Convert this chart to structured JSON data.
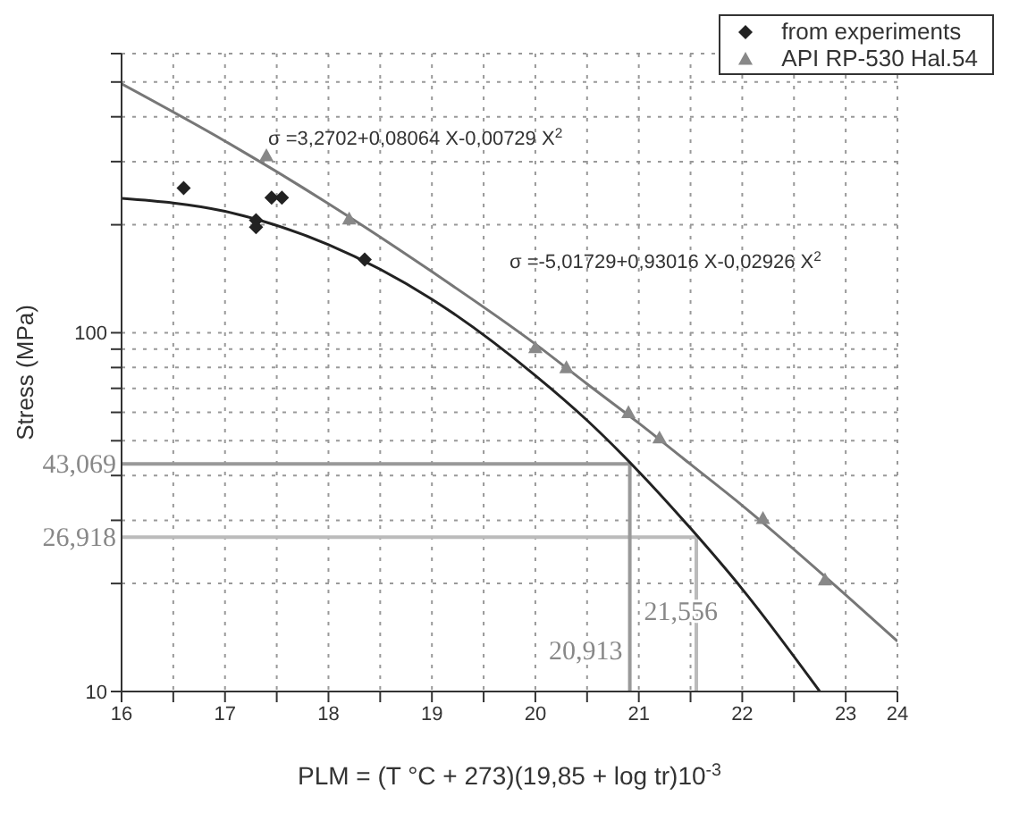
{
  "chart_data": {
    "type": "scatter",
    "xlabel": "PLM = (T °C + 273)(19,85 + log tr)10$^{-3}$",
    "ylabel": "Stress (MPa)",
    "log": "y",
    "grid": true,
    "legend": "top right",
    "xlim": [
      16,
      23.5
    ],
    "xticks": [
      16,
      {
        "value": 16.5,
        "label": null
      },
      17,
      {
        "value": 17.5,
        "label": null
      },
      18,
      {
        "value": 18.5,
        "label": null
      },
      19,
      {
        "value": 19.5,
        "label": null
      },
      20,
      {
        "value": 20.5,
        "label": null
      },
      21,
      {
        "value": 21.5,
        "label": null
      },
      22,
      {
        "value": 22.5,
        "label": null
      },
      23,
      {
        "value": 23.5,
        "label": "24"
      }
    ],
    "ylim": [
      10,
      600
    ],
    "yticks": [
      10,
      {
        "value": 20,
        "label": null
      },
      {
        "value": 30,
        "label": null
      },
      {
        "value": 40,
        "label": null
      },
      {
        "value": 50,
        "label": null
      },
      {
        "value": 60,
        "label": null
      },
      {
        "value": 70,
        "label": null
      },
      {
        "value": 80,
        "label": null
      },
      {
        "value": 90,
        "label": null
      },
      100,
      {
        "value": 200,
        "label": null
      },
      {
        "value": 300,
        "label": null
      },
      {
        "value": 400,
        "label": null
      },
      {
        "value": 500,
        "label": null
      },
      {
        "value": 600,
        "label": null
      }
    ],
    "series": [
      {
        "name": "from experiments",
        "marker": "diamond",
        "color": "#222222",
        "x": [
          16.6,
          17.3,
          17.3,
          17.45,
          17.55,
          18.35
        ],
        "values": [
          253,
          206,
          197,
          238,
          238,
          160
        ]
      },
      {
        "name": "API RP-530 Hal.54",
        "marker": "triangle",
        "color": "#888888",
        "x": [
          17.4,
          18.2,
          20,
          20.3,
          20.9,
          21.2,
          22.2,
          22.8
        ],
        "values": [
          312,
          208,
          91,
          80,
          60,
          51,
          30.4,
          20.5
        ]
      },
      {
        "type": "line",
        "marker": "none",
        "color": "#777777",
        "x": [
          16,
          17,
          18,
          19,
          20,
          20.5,
          21,
          21.5,
          22,
          23,
          23.5
        ],
        "values": [
          494,
          342,
          229,
          148,
          93,
          72,
          56,
          43,
          33,
          18.6,
          13.8
        ]
      },
      {
        "type": "line",
        "marker": "none",
        "color": "#222222",
        "x": [
          16,
          17,
          18,
          19,
          20,
          20.5,
          21,
          21.5,
          22,
          22.75
        ],
        "values": [
          237,
          218,
          176,
          124,
          76,
          57,
          41,
          28.5,
          19.3,
          10
        ]
      }
    ],
    "ref_lines": [
      {
        "axis": "y",
        "value": 43.069,
        "label": "43,069",
        "color": "#999999"
      },
      {
        "axis": "y",
        "value": 26.918,
        "label": "26,918",
        "color": "#bbbbbb"
      },
      {
        "axis": "x",
        "value": 20.913,
        "label": "20,913",
        "color": "#999999"
      },
      {
        "axis": "x",
        "value": 21.556,
        "label": "21,556",
        "color": "#bbbbbb"
      }
    ],
    "annotations": [
      "σ =3,2702+0,08064 X-0,00729 X$^{2}$",
      "σ =-5,01729+0,93016 X-0,02926 X$^{2}$"
    ]
  }
}
